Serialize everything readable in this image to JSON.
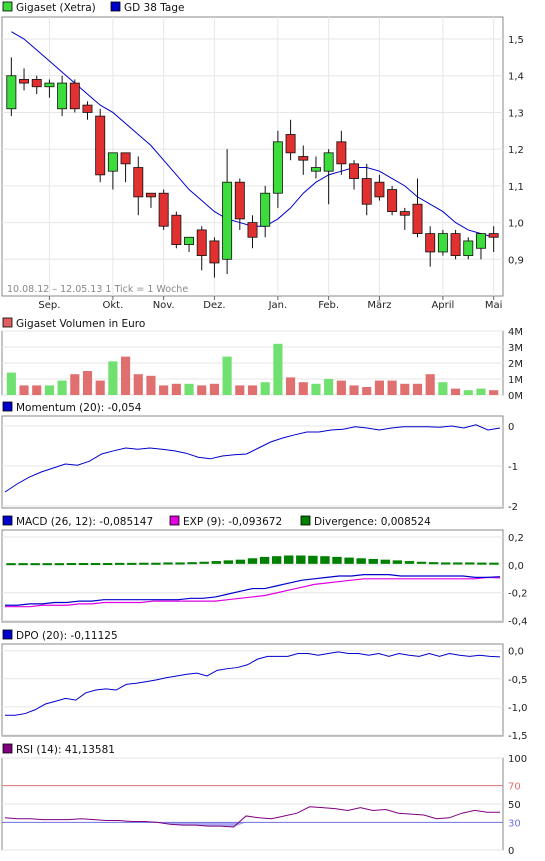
{
  "chart_data": [
    {
      "type": "candlestick",
      "title": "",
      "legend": [
        {
          "name": "Gigaset (Xetra)",
          "color": "#3ddc3d"
        },
        {
          "name": "GD 38 Tage",
          "color": "#0000cc"
        }
      ],
      "period_label": "10.08.12 – 12.05.13  1 Tick = 1 Woche",
      "x_labels": [
        "Sep.",
        "Okt.",
        "Nov.",
        "Dez.",
        "Jan.",
        "Feb.",
        "März",
        "April",
        "Mai"
      ],
      "x_label_week": [
        3,
        8,
        12,
        16,
        21,
        25,
        29,
        34,
        38
      ],
      "y_ticks": [
        {
          "v": 1.5,
          "t": "1,5"
        },
        {
          "v": 1.4,
          "t": "1,4"
        },
        {
          "v": 1.3,
          "t": "1,3"
        },
        {
          "v": 1.2,
          "t": "1,2"
        },
        {
          "v": 1.1,
          "t": "1,1"
        },
        {
          "v": 1.0,
          "t": "1,0"
        },
        {
          "v": 0.9,
          "t": "0,9"
        }
      ],
      "ylim": [
        0.8,
        1.56
      ],
      "weeks": 40,
      "candles": [
        {
          "o": 1.31,
          "h": 1.45,
          "l": 1.29,
          "c": 1.4
        },
        {
          "o": 1.39,
          "h": 1.42,
          "l": 1.36,
          "c": 1.38
        },
        {
          "o": 1.39,
          "h": 1.4,
          "l": 1.35,
          "c": 1.37
        },
        {
          "o": 1.37,
          "h": 1.39,
          "l": 1.34,
          "c": 1.38
        },
        {
          "o": 1.31,
          "h": 1.4,
          "l": 1.29,
          "c": 1.38
        },
        {
          "o": 1.38,
          "h": 1.39,
          "l": 1.3,
          "c": 1.31
        },
        {
          "o": 1.32,
          "h": 1.33,
          "l": 1.28,
          "c": 1.3
        },
        {
          "o": 1.29,
          "h": 1.31,
          "l": 1.11,
          "c": 1.13
        },
        {
          "o": 1.14,
          "h": 1.19,
          "l": 1.09,
          "c": 1.19
        },
        {
          "o": 1.19,
          "h": 1.19,
          "l": 1.11,
          "c": 1.16
        },
        {
          "o": 1.15,
          "h": 1.18,
          "l": 1.02,
          "c": 1.07
        },
        {
          "o": 1.08,
          "h": 1.08,
          "l": 1.04,
          "c": 1.07
        },
        {
          "o": 1.08,
          "h": 1.09,
          "l": 0.98,
          "c": 0.99
        },
        {
          "o": 1.02,
          "h": 1.03,
          "l": 0.93,
          "c": 0.94
        },
        {
          "o": 0.94,
          "h": 0.96,
          "l": 0.92,
          "c": 0.96
        },
        {
          "o": 0.98,
          "h": 0.99,
          "l": 0.87,
          "c": 0.91
        },
        {
          "o": 0.95,
          "h": 0.96,
          "l": 0.85,
          "c": 0.89
        },
        {
          "o": 0.9,
          "h": 1.2,
          "l": 0.86,
          "c": 1.11
        },
        {
          "o": 1.11,
          "h": 1.12,
          "l": 0.98,
          "c": 1.01
        },
        {
          "o": 1.0,
          "h": 1.02,
          "l": 0.93,
          "c": 0.96
        },
        {
          "o": 0.99,
          "h": 1.1,
          "l": 0.96,
          "c": 1.08
        },
        {
          "o": 1.08,
          "h": 1.25,
          "l": 1.04,
          "c": 1.22
        },
        {
          "o": 1.24,
          "h": 1.28,
          "l": 1.17,
          "c": 1.19
        },
        {
          "o": 1.18,
          "h": 1.21,
          "l": 1.13,
          "c": 1.17
        },
        {
          "o": 1.14,
          "h": 1.18,
          "l": 1.12,
          "c": 1.15
        },
        {
          "o": 1.14,
          "h": 1.2,
          "l": 1.05,
          "c": 1.19
        },
        {
          "o": 1.22,
          "h": 1.25,
          "l": 1.13,
          "c": 1.16
        },
        {
          "o": 1.16,
          "h": 1.17,
          "l": 1.09,
          "c": 1.12
        },
        {
          "o": 1.12,
          "h": 1.16,
          "l": 1.02,
          "c": 1.05
        },
        {
          "o": 1.11,
          "h": 1.13,
          "l": 1.06,
          "c": 1.07
        },
        {
          "o": 1.09,
          "h": 1.1,
          "l": 1.02,
          "c": 1.03
        },
        {
          "o": 1.03,
          "h": 1.04,
          "l": 0.98,
          "c": 1.02
        },
        {
          "o": 1.05,
          "h": 1.12,
          "l": 0.96,
          "c": 0.97
        },
        {
          "o": 0.97,
          "h": 0.99,
          "l": 0.88,
          "c": 0.92
        },
        {
          "o": 0.92,
          "h": 0.98,
          "l": 0.91,
          "c": 0.97
        },
        {
          "o": 0.97,
          "h": 0.98,
          "l": 0.9,
          "c": 0.91
        },
        {
          "o": 0.91,
          "h": 0.96,
          "l": 0.9,
          "c": 0.95
        },
        {
          "o": 0.93,
          "h": 0.97,
          "l": 0.9,
          "c": 0.97
        },
        {
          "o": 0.97,
          "h": 0.99,
          "l": 0.92,
          "c": 0.96
        }
      ],
      "sma38": [
        1.52,
        1.5,
        1.47,
        1.44,
        1.41,
        1.38,
        1.35,
        1.32,
        1.3,
        1.27,
        1.24,
        1.21,
        1.17,
        1.13,
        1.09,
        1.06,
        1.03,
        1.01,
        1.0,
        0.99,
        0.99,
        1.01,
        1.04,
        1.08,
        1.11,
        1.13,
        1.14,
        1.15,
        1.15,
        1.14,
        1.12,
        1.1,
        1.07,
        1.05,
        1.03,
        1.0,
        0.98,
        0.97,
        0.96
      ],
      "colors": {
        "up": "#3ddc3d",
        "down": "#e03030",
        "line": "#0000cc"
      }
    },
    {
      "type": "bar",
      "title": "Gigaset Volumen in Euro",
      "legend_color": "#e06060",
      "y_ticks": [
        {
          "v": 4,
          "t": "4M"
        },
        {
          "v": 3,
          "t": "3M"
        },
        {
          "v": 2,
          "t": "2M"
        },
        {
          "v": 1,
          "t": "1M"
        },
        {
          "v": 0,
          "t": "0M"
        }
      ],
      "ylim": [
        0,
        4
      ],
      "unit": "M",
      "values": [
        1.4,
        0.6,
        0.6,
        0.6,
        0.9,
        1.3,
        1.5,
        0.9,
        2.1,
        2.4,
        1.3,
        1.2,
        0.6,
        0.7,
        0.7,
        0.6,
        0.7,
        2.4,
        0.6,
        0.6,
        0.8,
        3.2,
        1.1,
        0.8,
        0.7,
        1.0,
        0.9,
        0.6,
        0.5,
        0.9,
        0.9,
        0.7,
        0.7,
        1.3,
        0.8,
        0.4,
        0.3,
        0.4,
        0.3
      ],
      "colors": {
        "up": "#70e070",
        "down": "#e07070"
      }
    },
    {
      "type": "line",
      "title": "Momentum (20): -0,054",
      "legend_color": "#0000cc",
      "y_ticks": [
        {
          "v": 0,
          "t": "0"
        },
        {
          "v": -1,
          "t": "-1"
        },
        {
          "v": -2,
          "t": "-2"
        }
      ],
      "ylim": [
        -2.05,
        0.25
      ],
      "values": [
        -1.65,
        -1.45,
        -1.28,
        -1.15,
        -1.05,
        -0.95,
        -0.98,
        -0.88,
        -0.7,
        -0.62,
        -0.55,
        -0.58,
        -0.55,
        -0.58,
        -0.62,
        -0.68,
        -0.78,
        -0.82,
        -0.75,
        -0.72,
        -0.7,
        -0.55,
        -0.4,
        -0.3,
        -0.22,
        -0.15,
        -0.15,
        -0.1,
        -0.08,
        -0.02,
        -0.05,
        -0.1,
        -0.05,
        -0.02,
        -0.02,
        -0.02,
        -0.03,
        0.0,
        -0.05,
        0.03,
        -0.1,
        -0.05
      ],
      "colors": {
        "line": "#0000cc"
      }
    },
    {
      "type": "line",
      "title": "MACD",
      "legend": [
        {
          "name": "MACD (26, 12): -0,085147",
          "color": "#0000cc"
        },
        {
          "name": "EXP (9): -0,093672",
          "color": "#e000e0"
        },
        {
          "name": "Divergence: 0,008524",
          "color": "#008000"
        }
      ],
      "y_ticks": [
        {
          "v": 0.2,
          "t": "0,2"
        },
        {
          "v": 0.0,
          "t": "0,0"
        },
        {
          "v": -0.2,
          "t": "-0,2"
        },
        {
          "v": -0.4,
          "t": "-0,4"
        }
      ],
      "ylim": [
        -0.41,
        0.25
      ],
      "macd": [
        -0.29,
        -0.29,
        -0.28,
        -0.28,
        -0.27,
        -0.27,
        -0.26,
        -0.26,
        -0.25,
        -0.25,
        -0.25,
        -0.25,
        -0.25,
        -0.25,
        -0.25,
        -0.24,
        -0.24,
        -0.23,
        -0.21,
        -0.19,
        -0.17,
        -0.17,
        -0.15,
        -0.13,
        -0.11,
        -0.1,
        -0.09,
        -0.08,
        -0.08,
        -0.07,
        -0.07,
        -0.07,
        -0.08,
        -0.08,
        -0.08,
        -0.08,
        -0.08,
        -0.08,
        -0.09,
        -0.09,
        -0.085
      ],
      "signal": [
        -0.3,
        -0.3,
        -0.3,
        -0.29,
        -0.29,
        -0.29,
        -0.28,
        -0.28,
        -0.27,
        -0.27,
        -0.27,
        -0.27,
        -0.26,
        -0.26,
        -0.26,
        -0.26,
        -0.26,
        -0.26,
        -0.25,
        -0.24,
        -0.23,
        -0.22,
        -0.2,
        -0.18,
        -0.16,
        -0.14,
        -0.13,
        -0.12,
        -0.11,
        -0.1,
        -0.1,
        -0.1,
        -0.1,
        -0.1,
        -0.1,
        -0.1,
        -0.1,
        -0.1,
        -0.1,
        -0.09,
        -0.094
      ],
      "divergence": [
        0.005,
        0.005,
        0.005,
        0.005,
        0.005,
        0.006,
        0.006,
        0.006,
        0.006,
        0.007,
        0.007,
        0.008,
        0.008,
        0.01,
        0.01,
        0.012,
        0.015,
        0.02,
        0.025,
        0.03,
        0.04,
        0.05,
        0.055,
        0.06,
        0.06,
        0.058,
        0.055,
        0.05,
        0.045,
        0.04,
        0.035,
        0.03,
        0.025,
        0.02,
        0.015,
        0.012,
        0.01,
        0.01,
        0.01,
        0.009,
        0.0085
      ],
      "colors": {
        "macd": "#0000cc",
        "signal": "#e000e0",
        "divergence": "#008000"
      }
    },
    {
      "type": "line",
      "title": "DPO (20): -0,11125",
      "legend_color": "#0000cc",
      "y_ticks": [
        {
          "v": 0.0,
          "t": "0,0"
        },
        {
          "v": -0.5,
          "t": "-0,5"
        },
        {
          "v": -1.0,
          "t": "-1,0"
        },
        {
          "v": -1.5,
          "t": "-1,5"
        }
      ],
      "ylim": [
        -1.52,
        0.12
      ],
      "values": [
        -1.15,
        -1.15,
        -1.12,
        -1.05,
        -0.95,
        -0.9,
        -0.85,
        -0.88,
        -0.75,
        -0.7,
        -0.68,
        -0.7,
        -0.6,
        -0.58,
        -0.55,
        -0.52,
        -0.48,
        -0.45,
        -0.42,
        -0.4,
        -0.45,
        -0.35,
        -0.32,
        -0.3,
        -0.25,
        -0.15,
        -0.1,
        -0.1,
        -0.1,
        -0.05,
        -0.05,
        -0.08,
        -0.05,
        -0.02,
        -0.05,
        -0.05,
        -0.08,
        -0.05,
        -0.1,
        -0.05,
        -0.08,
        -0.1,
        -0.05,
        -0.1,
        -0.05,
        -0.08,
        -0.1,
        -0.08,
        -0.1,
        -0.11
      ],
      "colors": {
        "line": "#0000cc"
      }
    },
    {
      "type": "line",
      "title": "RSI (14): 41,13581",
      "legend_color": "#800080",
      "y_ticks": [
        {
          "v": 100,
          "t": "100"
        },
        {
          "v": 70,
          "t": "70"
        },
        {
          "v": 50,
          "t": "50"
        },
        {
          "v": 30,
          "t": "30"
        },
        {
          "v": 0,
          "t": "0"
        }
      ],
      "ylim": [
        0,
        100
      ],
      "upper": 70,
      "lower": 30,
      "values": [
        35,
        34,
        34,
        33,
        33,
        33,
        34,
        33,
        32,
        32,
        31,
        31,
        30,
        28,
        27,
        27,
        26,
        26,
        25,
        37,
        35,
        34,
        37,
        40,
        47,
        46,
        45,
        43,
        46,
        43,
        44,
        40,
        39,
        38,
        34,
        35,
        40,
        43,
        41,
        41
      ],
      "colors": {
        "line": "#800080",
        "upper": "#e07070",
        "lower": "#7070e0",
        "fill": "#7070e0"
      }
    }
  ]
}
